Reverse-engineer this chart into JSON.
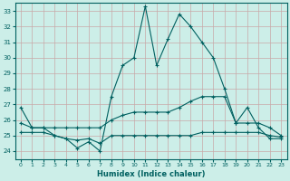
{
  "xlabel": "Humidex (Indice chaleur)",
  "background_color": "#cceee8",
  "grid_color": "#c8a8a8",
  "line_color": "#006060",
  "xlim": [
    -0.5,
    23.5
  ],
  "ylim": [
    23.5,
    33.5
  ],
  "yticks": [
    24,
    25,
    26,
    27,
    28,
    29,
    30,
    31,
    32,
    33
  ],
  "xticks": [
    0,
    1,
    2,
    3,
    4,
    5,
    6,
    7,
    8,
    9,
    10,
    11,
    12,
    13,
    14,
    15,
    16,
    17,
    18,
    19,
    20,
    21,
    22,
    23
  ],
  "series1_x": [
    0,
    1,
    2,
    3,
    4,
    5,
    6,
    7,
    8,
    9,
    10,
    11,
    12,
    13,
    14,
    15,
    16,
    17,
    18,
    19,
    20,
    21,
    22,
    23
  ],
  "series1_y": [
    26.8,
    25.5,
    25.5,
    25.0,
    24.8,
    24.2,
    24.6,
    24.0,
    27.5,
    29.5,
    30.0,
    33.3,
    29.5,
    31.2,
    32.8,
    32.0,
    31.0,
    30.0,
    28.0,
    25.8,
    26.8,
    25.5,
    24.8,
    24.8
  ],
  "series2_x": [
    0,
    1,
    2,
    3,
    4,
    5,
    6,
    7,
    8,
    9,
    10,
    11,
    12,
    13,
    14,
    15,
    16,
    17,
    18,
    19,
    20,
    21,
    22,
    23
  ],
  "series2_y": [
    25.8,
    25.5,
    25.5,
    25.5,
    25.5,
    25.5,
    25.5,
    25.5,
    26.0,
    26.3,
    26.5,
    26.5,
    26.5,
    26.5,
    26.8,
    27.2,
    27.5,
    27.5,
    27.5,
    25.8,
    25.8,
    25.8,
    25.5,
    25.0
  ],
  "series3_x": [
    0,
    1,
    2,
    3,
    4,
    5,
    6,
    7,
    8,
    9,
    10,
    11,
    12,
    13,
    14,
    15,
    16,
    17,
    18,
    19,
    20,
    21,
    22,
    23
  ],
  "series3_y": [
    25.2,
    25.2,
    25.2,
    25.0,
    24.8,
    24.7,
    24.8,
    24.5,
    25.0,
    25.0,
    25.0,
    25.0,
    25.0,
    25.0,
    25.0,
    25.0,
    25.2,
    25.2,
    25.2,
    25.2,
    25.2,
    25.2,
    25.0,
    24.9
  ]
}
